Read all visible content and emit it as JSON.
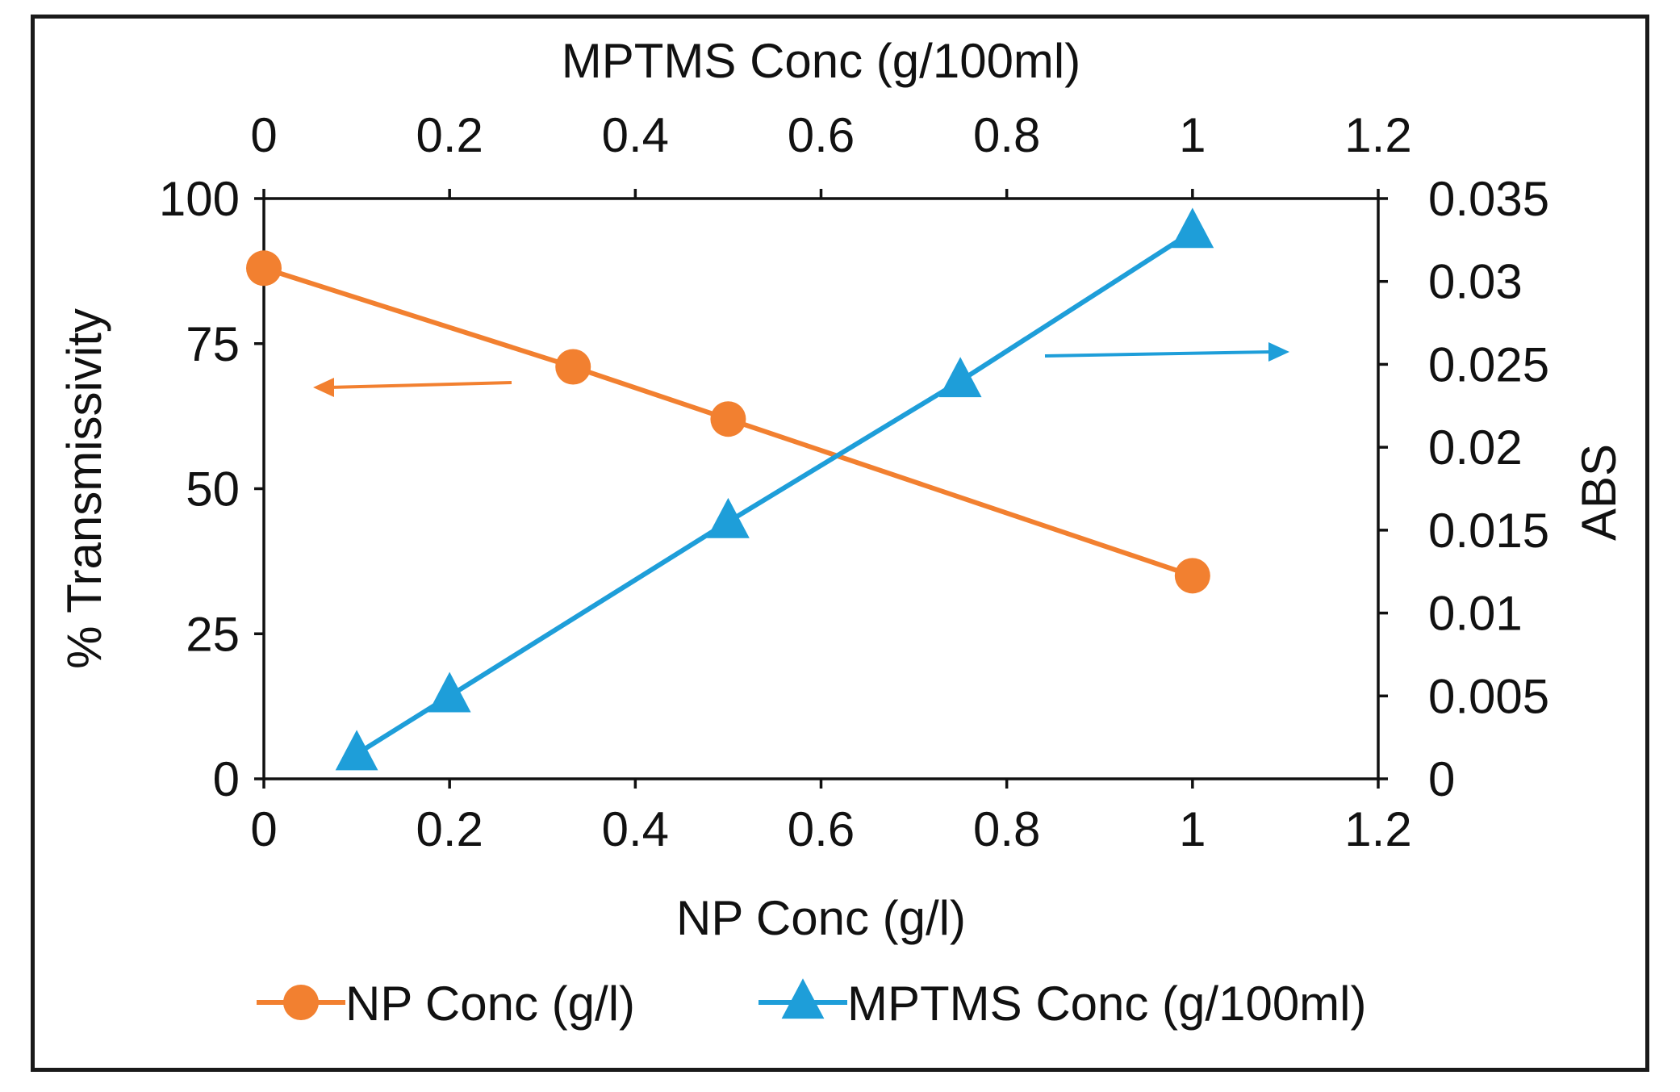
{
  "chart_data": {
    "type": "line",
    "title": "",
    "x_bottom": {
      "label": "NP Conc (g/l)",
      "range": [
        0,
        1.2
      ],
      "ticks": [
        "0",
        "0.2",
        "0.4",
        "0.6",
        "0.8",
        "1",
        "1.2"
      ]
    },
    "x_top": {
      "label": "MPTMS Conc (g/100ml)",
      "range": [
        0,
        1.2
      ],
      "ticks": [
        "0",
        "0.2",
        "0.4",
        "0.6",
        "0.8",
        "1",
        "1.2"
      ]
    },
    "y_left": {
      "label": "% Transmissivity",
      "range": [
        0,
        100
      ],
      "ticks": [
        "0",
        "25",
        "50",
        "75",
        "100"
      ]
    },
    "y_right": {
      "label": "ABS",
      "range": [
        0,
        0.035
      ],
      "ticks": [
        "0",
        "0.005",
        "0.01",
        "0.015",
        "0.02",
        "0.025",
        "0.03",
        "0.035"
      ]
    },
    "grid": false,
    "legend_position": "bottom",
    "series": [
      {
        "name": "NP Conc (g/l)",
        "x_axis": "bottom",
        "y_axis": "left",
        "marker": "circle",
        "color": "#F28030",
        "x": [
          0,
          0.333,
          0.5,
          1
        ],
        "y": [
          88,
          71,
          62,
          35
        ]
      },
      {
        "name": "MPTMS Conc (g/100ml)",
        "x_axis": "top",
        "y_axis": "right",
        "marker": "triangle",
        "color": "#1E9ED9",
        "x": [
          0.1,
          0.2,
          0.5,
          0.75,
          1
        ],
        "y": [
          0.0015,
          0.005,
          0.0155,
          0.024,
          0.033
        ]
      }
    ],
    "annotations": [
      {
        "type": "arrow",
        "direction": "left",
        "color": "#F28030",
        "refers_to": "y_left"
      },
      {
        "type": "arrow",
        "direction": "right",
        "color": "#1E9ED9",
        "refers_to": "y_right"
      }
    ]
  }
}
